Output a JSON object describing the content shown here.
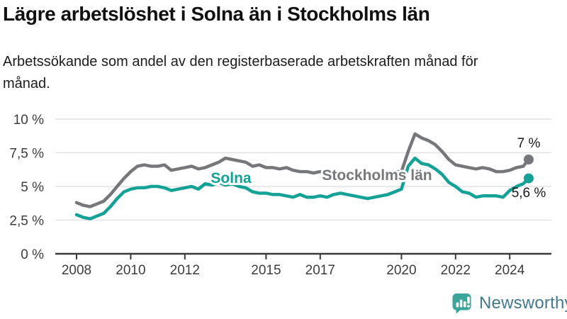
{
  "header": {
    "title": "Lägre arbetslöshet i Solna än i Stockholms län",
    "subtitle": "Arbetssökande som andel av den registerbaserade arbetskraften månad för månad."
  },
  "chart": {
    "series_labels": {
      "solna": "Solna",
      "stockholm": "Stockholms län"
    },
    "end_labels": {
      "stockholm": "7 %",
      "solna": "5,6 %"
    },
    "colors": {
      "solna_line": "#15a296",
      "stockholm_line": "#76777b",
      "stockholm_label": "#77787c",
      "solna_label": "#15a296",
      "grid": "#e2e2e2",
      "axis": "#3a3a3a"
    }
  },
  "chart_data": {
    "type": "line",
    "title": "Lägre arbetslöshet i Solna än i Stockholms län",
    "subtitle": "Arbetssökande som andel av den registerbaserade arbetskraften månad för månad.",
    "xlabel": "",
    "ylabel": "",
    "ylim": [
      0,
      10
    ],
    "xlim": [
      2008,
      2025
    ],
    "grid": "horizontal",
    "legend_position": "inline-labels",
    "y_ticks": [
      {
        "value": 0,
        "label": "0 %"
      },
      {
        "value": 2.5,
        "label": "2,5 %"
      },
      {
        "value": 5,
        "label": "5 %"
      },
      {
        "value": 7.5,
        "label": "7,5 %"
      },
      {
        "value": 10,
        "label": "10 %"
      }
    ],
    "x_ticks": [
      {
        "value": 2008,
        "label": "2008"
      },
      {
        "value": 2010,
        "label": "2010"
      },
      {
        "value": 2012,
        "label": "2012"
      },
      {
        "value": 2015,
        "label": "2015"
      },
      {
        "value": 2017,
        "label": "2017"
      },
      {
        "value": 2020,
        "label": "2020"
      },
      {
        "value": 2022,
        "label": "2022"
      },
      {
        "value": 2024,
        "label": "2024"
      }
    ],
    "x": [
      2008,
      2008.25,
      2008.5,
      2008.75,
      2009,
      2009.25,
      2009.5,
      2009.75,
      2010,
      2010.25,
      2010.5,
      2010.75,
      2011,
      2011.25,
      2011.5,
      2011.75,
      2012,
      2012.25,
      2012.5,
      2012.75,
      2013,
      2013.25,
      2013.5,
      2013.75,
      2014,
      2014.25,
      2014.5,
      2014.75,
      2015,
      2015.25,
      2015.5,
      2015.75,
      2016,
      2016.25,
      2016.5,
      2016.75,
      2017,
      2017.25,
      2017.5,
      2017.75,
      2018,
      2018.25,
      2018.5,
      2018.75,
      2019,
      2019.25,
      2019.5,
      2019.75,
      2020,
      2020.25,
      2020.5,
      2020.75,
      2021,
      2021.25,
      2021.5,
      2021.75,
      2022,
      2022.25,
      2022.5,
      2022.75,
      2023,
      2023.25,
      2023.5,
      2023.75,
      2024,
      2024.25,
      2024.5,
      2024.7
    ],
    "series": [
      {
        "name": "Stockholms län",
        "color": "#76777b",
        "last_value_label": "7 %",
        "values": [
          3.8,
          3.6,
          3.5,
          3.7,
          3.9,
          4.4,
          5.0,
          5.6,
          6.1,
          6.5,
          6.6,
          6.5,
          6.5,
          6.6,
          6.2,
          6.3,
          6.4,
          6.5,
          6.3,
          6.4,
          6.6,
          6.8,
          7.1,
          7.0,
          6.9,
          6.8,
          6.5,
          6.6,
          6.4,
          6.4,
          6.3,
          6.4,
          6.2,
          6.1,
          6.1,
          6.0,
          6.1,
          6.0,
          6.0,
          5.9,
          6.0,
          5.9,
          5.9,
          6.0,
          6.0,
          6.0,
          6.1,
          6.1,
          6.1,
          7.6,
          8.9,
          8.6,
          8.4,
          8.1,
          7.6,
          7.0,
          6.6,
          6.5,
          6.4,
          6.3,
          6.4,
          6.3,
          6.1,
          6.1,
          6.2,
          6.4,
          6.5,
          7.0
        ]
      },
      {
        "name": "Solna",
        "color": "#15a296",
        "last_value_label": "5,6 %",
        "values": [
          2.9,
          2.7,
          2.6,
          2.8,
          3.0,
          3.5,
          4.1,
          4.6,
          4.8,
          4.9,
          4.9,
          5.0,
          5.0,
          4.9,
          4.7,
          4.8,
          4.9,
          5.0,
          4.8,
          5.2,
          5.1,
          5.3,
          5.1,
          5.2,
          5.0,
          4.9,
          4.6,
          4.5,
          4.5,
          4.4,
          4.4,
          4.3,
          4.2,
          4.4,
          4.2,
          4.2,
          4.3,
          4.2,
          4.4,
          4.5,
          4.4,
          4.3,
          4.2,
          4.1,
          4.2,
          4.3,
          4.4,
          4.6,
          4.8,
          6.5,
          7.1,
          6.7,
          6.6,
          6.3,
          5.9,
          5.3,
          5.0,
          4.6,
          4.5,
          4.2,
          4.3,
          4.3,
          4.3,
          4.2,
          4.7,
          5.0,
          5.2,
          5.6
        ]
      }
    ]
  },
  "footer": {
    "brand": "Newsworthy"
  }
}
